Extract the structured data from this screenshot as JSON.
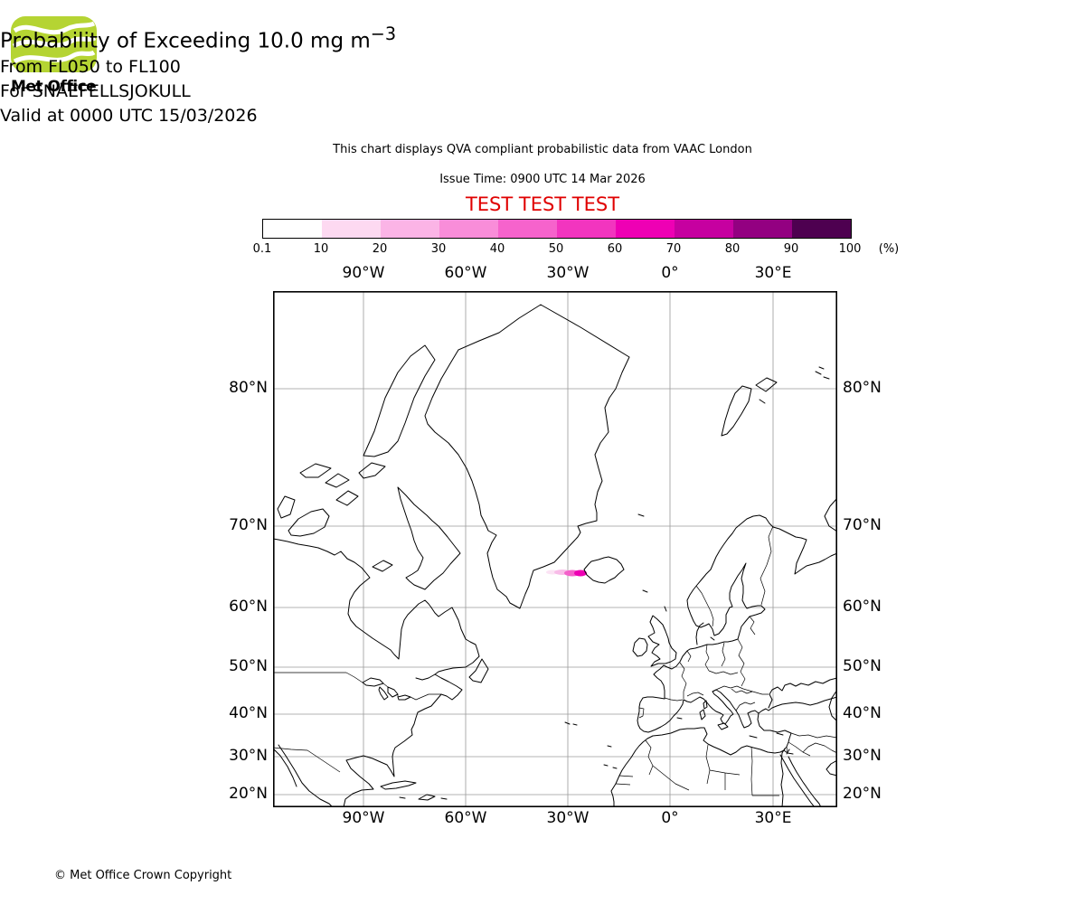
{
  "logo": {
    "brand": "Met Office"
  },
  "header": {
    "title_main": "Probability of Exceeding 10.0 mg m",
    "title_sup": "−3",
    "subtitle_flight_levels": "From FL050 to FL100",
    "subtitle_volcano": "For SNAEFELLSJOKULL",
    "subtitle_valid": "Valid at 0000 UTC 15/03/2026",
    "qva_note": "This chart displays QVA compliant probabilistic data from VAAC London",
    "issue_time": "Issue Time: 0900 UTC 14 Mar 2026",
    "test_banner": "TEST TEST TEST"
  },
  "colorbar": {
    "tick_labels": [
      "0.1",
      "10",
      "20",
      "30",
      "40",
      "50",
      "60",
      "70",
      "80",
      "90",
      "100"
    ],
    "unit_label": "(%)",
    "colors": [
      "#ffffff",
      "#fdd9f1",
      "#fbb4e6",
      "#f98dd9",
      "#f663cc",
      "#f235bf",
      "#ee00b4",
      "#c600a0",
      "#930081",
      "#4e0050"
    ]
  },
  "map": {
    "lon_labels": [
      "90°W",
      "60°W",
      "30°W",
      "0°",
      "30°E"
    ],
    "lat_labels": [
      "80°N",
      "70°N",
      "60°N",
      "50°N",
      "40°N",
      "30°N",
      "20°N"
    ],
    "plume": {
      "description": "Probability plume extending west from Iceland",
      "approx_lat": "64°N",
      "approx_lon_range": "22°W to 29°W"
    }
  },
  "footer": {
    "copyright": "© Met Office Crown Copyright"
  }
}
